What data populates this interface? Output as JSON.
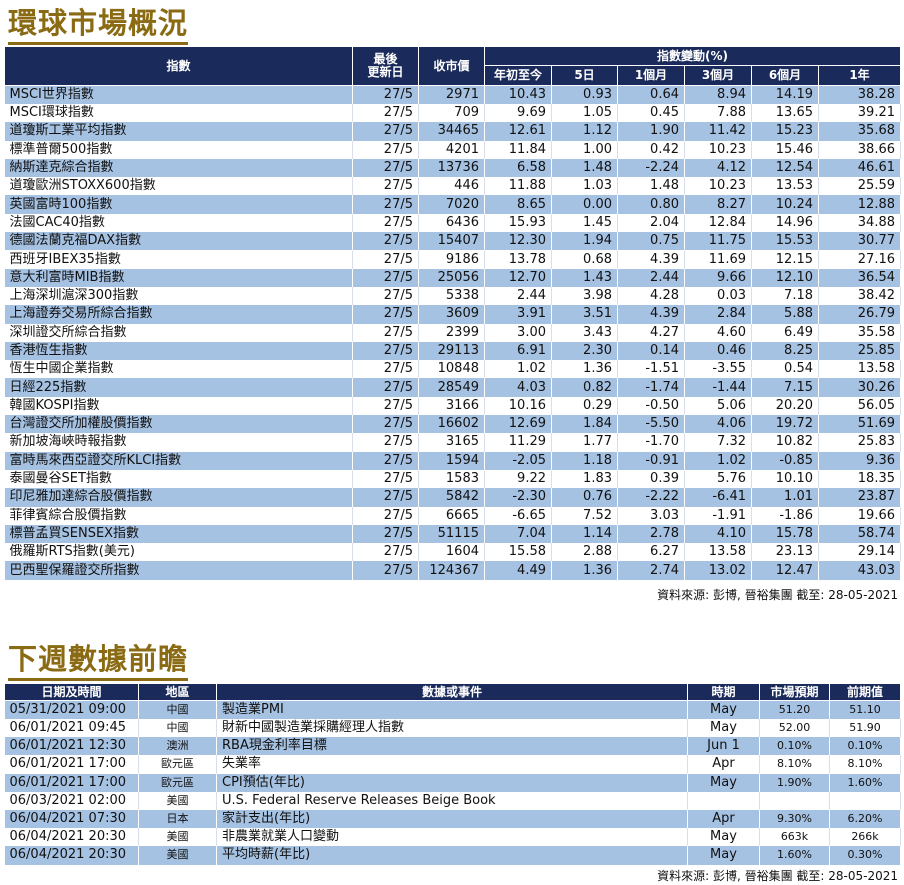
{
  "market": {
    "title": "環球市場概況",
    "headers": {
      "index": "指數",
      "last_update": "最後\n更新日",
      "close": "收市價",
      "change_group": "指數變動(%)",
      "ytd": "年初至今",
      "d5": "5日",
      "m1": "1個月",
      "m3": "3個月",
      "m6": "6個月",
      "y1": "1年"
    },
    "rows": [
      [
        "MSCI世界指數",
        "27/5",
        "2971",
        "10.43",
        "0.93",
        "0.64",
        "8.94",
        "14.19",
        "38.28"
      ],
      [
        "MSCI環球指數",
        "27/5",
        "709",
        "9.69",
        "1.05",
        "0.45",
        "7.88",
        "13.65",
        "39.21"
      ],
      [
        "道瓊斯工業平均指數",
        "27/5",
        "34465",
        "12.61",
        "1.12",
        "1.90",
        "11.42",
        "15.23",
        "35.68"
      ],
      [
        "標準普爾500指數",
        "27/5",
        "4201",
        "11.84",
        "1.00",
        "0.42",
        "10.23",
        "15.46",
        "38.66"
      ],
      [
        "納斯達克綜合指數",
        "27/5",
        "13736",
        "6.58",
        "1.48",
        "-2.24",
        "4.12",
        "12.54",
        "46.61"
      ],
      [
        "道瓊歐洲STOXX600指數",
        "27/5",
        "446",
        "11.88",
        "1.03",
        "1.48",
        "10.23",
        "13.53",
        "25.59"
      ],
      [
        "英國富時100指數",
        "27/5",
        "7020",
        "8.65",
        "0.00",
        "0.80",
        "8.27",
        "10.24",
        "12.88"
      ],
      [
        "法國CAC40指數",
        "27/5",
        "6436",
        "15.93",
        "1.45",
        "2.04",
        "12.84",
        "14.96",
        "34.88"
      ],
      [
        "德國法蘭克福DAX指數",
        "27/5",
        "15407",
        "12.30",
        "1.94",
        "0.75",
        "11.75",
        "15.53",
        "30.77"
      ],
      [
        "西班牙IBEX35指數",
        "27/5",
        "9186",
        "13.78",
        "0.68",
        "4.39",
        "11.69",
        "12.15",
        "27.16"
      ],
      [
        "意大利富時MIB指數",
        "27/5",
        "25056",
        "12.70",
        "1.43",
        "2.44",
        "9.66",
        "12.10",
        "36.54"
      ],
      [
        "上海深圳滬深300指數",
        "27/5",
        "5338",
        "2.44",
        "3.98",
        "4.28",
        "0.03",
        "7.18",
        "38.42"
      ],
      [
        "上海證券交易所綜合指數",
        "27/5",
        "3609",
        "3.91",
        "3.51",
        "4.39",
        "2.84",
        "5.88",
        "26.79"
      ],
      [
        "深圳證交所綜合指數",
        "27/5",
        "2399",
        "3.00",
        "3.43",
        "4.27",
        "4.60",
        "6.49",
        "35.58"
      ],
      [
        "香港恆生指數",
        "27/5",
        "29113",
        "6.91",
        "2.30",
        "0.14",
        "0.46",
        "8.25",
        "25.85"
      ],
      [
        "恆生中國企業指數",
        "27/5",
        "10848",
        "1.02",
        "1.36",
        "-1.51",
        "-3.55",
        "0.54",
        "13.58"
      ],
      [
        "日經225指數",
        "27/5",
        "28549",
        "4.03",
        "0.82",
        "-1.74",
        "-1.44",
        "7.15",
        "30.26"
      ],
      [
        "韓國KOSPI指數",
        "27/5",
        "3166",
        "10.16",
        "0.29",
        "-0.50",
        "5.06",
        "20.20",
        "56.05"
      ],
      [
        "台灣證交所加權股價指數",
        "27/5",
        "16602",
        "12.69",
        "1.84",
        "-5.50",
        "4.06",
        "19.72",
        "51.69"
      ],
      [
        "新加坡海峽時報指數",
        "27/5",
        "3165",
        "11.29",
        "1.77",
        "-1.70",
        "7.32",
        "10.82",
        "25.83"
      ],
      [
        "富時馬來西亞證交所KLCI指數",
        "27/5",
        "1594",
        "-2.05",
        "1.18",
        "-0.91",
        "1.02",
        "-0.85",
        "9.36"
      ],
      [
        "泰國曼谷SET指數",
        "27/5",
        "1583",
        "9.22",
        "1.83",
        "0.39",
        "5.76",
        "10.10",
        "18.35"
      ],
      [
        "印尼雅加達綜合股價指數",
        "27/5",
        "5842",
        "-2.30",
        "0.76",
        "-2.22",
        "-6.41",
        "1.01",
        "23.87"
      ],
      [
        "菲律賓綜合股價指數",
        "27/5",
        "6665",
        "-6.65",
        "7.52",
        "3.03",
        "-1.91",
        "-1.86",
        "19.66"
      ],
      [
        "標普孟買SENSEX指數",
        "27/5",
        "51115",
        "7.04",
        "1.14",
        "2.78",
        "4.10",
        "15.78",
        "58.74"
      ],
      [
        "俄羅斯RTS指數(美元)",
        "27/5",
        "1604",
        "15.58",
        "2.88",
        "6.27",
        "13.58",
        "23.13",
        "29.14"
      ],
      [
        "巴西聖保羅證交所指數",
        "27/5",
        "124367",
        "4.49",
        "1.36",
        "2.74",
        "13.02",
        "12.47",
        "43.03"
      ]
    ],
    "source": "資料來源: 彭博, 晉裕集團 截至:  28-05-2021"
  },
  "events": {
    "title": "下週數據前瞻",
    "headers": {
      "datetime": "日期及時間",
      "region": "地區",
      "event": "數據或事件",
      "period": "時期",
      "forecast": "市場預期",
      "previous": "前期值"
    },
    "rows": [
      [
        "05/31/2021 09:00",
        "中國",
        "製造業PMI",
        "May",
        "51.20",
        "51.10"
      ],
      [
        "06/01/2021 09:45",
        "中國",
        "財新中國製造業採購經理人指數",
        "May",
        "52.00",
        "51.90"
      ],
      [
        "06/01/2021 12:30",
        "澳洲",
        "RBA現金利率目標",
        "Jun 1",
        "0.10%",
        "0.10%"
      ],
      [
        "06/01/2021 17:00",
        "歐元區",
        "失業率",
        "Apr",
        "8.10%",
        "8.10%"
      ],
      [
        "06/01/2021 17:00",
        "歐元區",
        "CPI預估(年比)",
        "May",
        "1.90%",
        "1.60%"
      ],
      [
        "06/03/2021 02:00",
        "美國",
        "U.S. Federal Reserve Releases Beige Book",
        "",
        "",
        ""
      ],
      [
        "06/04/2021 07:30",
        "日本",
        "家計支出(年比)",
        "Apr",
        "9.30%",
        "6.20%"
      ],
      [
        "06/04/2021 20:30",
        "美國",
        "非農業就業人口變動",
        "May",
        "663k",
        "266k"
      ],
      [
        "06/04/2021 20:30",
        "美國",
        "平均時薪(年比)",
        "May",
        "1.60%",
        "0.30%"
      ]
    ],
    "source": "資料來源: 彭博, 晉裕集團 截至:  28-05-2021"
  }
}
